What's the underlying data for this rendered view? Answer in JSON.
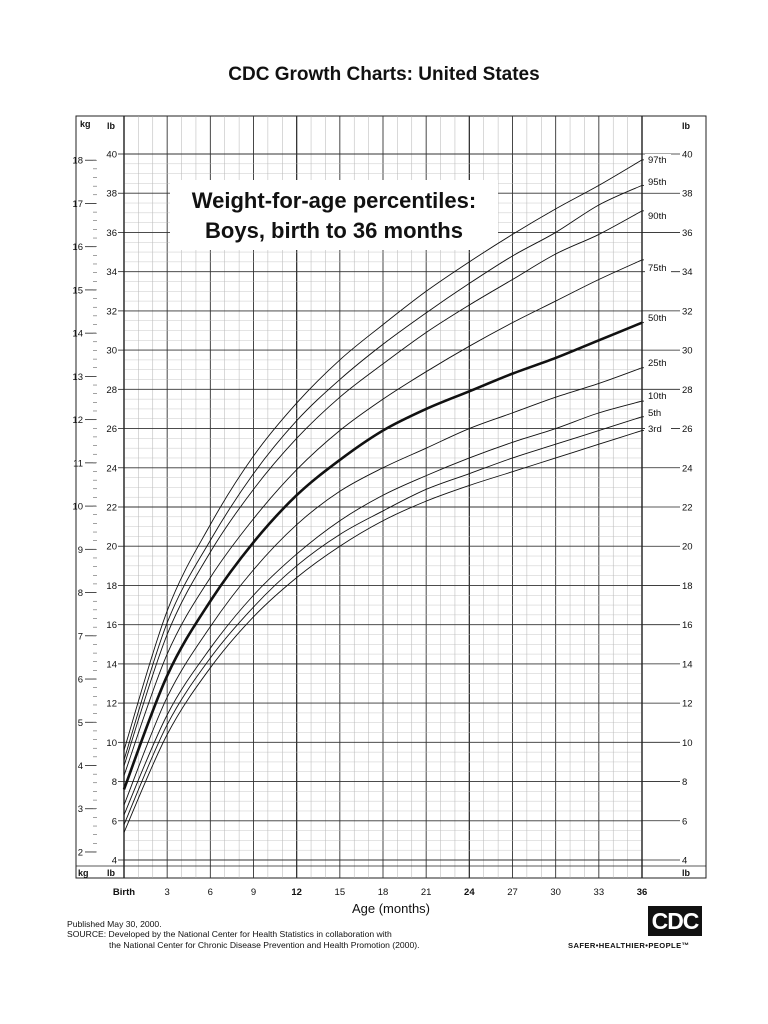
{
  "header": {
    "title": "CDC Growth Charts: United States"
  },
  "footer": {
    "published": "Published May 30, 2000.",
    "source_line1": "SOURCE: Developed by the National Center for Health Statistics in collaboration with",
    "source_line2": "the National Center for Chronic Disease Prevention and Health Promotion (2000)."
  },
  "logo": {
    "text": "CDC",
    "tagline": "SAFER•HEALTHIER•PEOPLE™"
  },
  "chart_data": {
    "type": "line",
    "title_line1": "Weight-for-age percentiles:",
    "title_line2": "Boys, birth to 36 months",
    "xlabel": "Age (months)",
    "xlim": [
      0,
      36
    ],
    "x_ticks": [
      {
        "value": 0,
        "label": "Birth",
        "bold": true
      },
      {
        "value": 3,
        "label": "3",
        "bold": false
      },
      {
        "value": 6,
        "label": "6",
        "bold": false
      },
      {
        "value": 9,
        "label": "9",
        "bold": false
      },
      {
        "value": 12,
        "label": "12",
        "bold": true
      },
      {
        "value": 15,
        "label": "15",
        "bold": false
      },
      {
        "value": 18,
        "label": "18",
        "bold": false
      },
      {
        "value": 21,
        "label": "21",
        "bold": false
      },
      {
        "value": 24,
        "label": "24",
        "bold": true
      },
      {
        "value": 27,
        "label": "27",
        "bold": false
      },
      {
        "value": 30,
        "label": "30",
        "bold": false
      },
      {
        "value": 33,
        "label": "33",
        "bold": false
      },
      {
        "value": 36,
        "label": "36",
        "bold": true
      }
    ],
    "lb_axis": {
      "unit": "lb",
      "range": [
        4,
        40
      ],
      "ticks": [
        4,
        6,
        8,
        10,
        12,
        14,
        16,
        18,
        20,
        22,
        24,
        26,
        28,
        30,
        32,
        34,
        36,
        38,
        40
      ]
    },
    "kg_axis": {
      "unit": "kg",
      "ticks": [
        2,
        3,
        4,
        5,
        6,
        7,
        8,
        9,
        10,
        11,
        12,
        13,
        14,
        15,
        16,
        17,
        18
      ]
    },
    "grid": true,
    "x": [
      0,
      3,
      6,
      9,
      12,
      15,
      18,
      21,
      24,
      27,
      30,
      33,
      36
    ],
    "series": [
      {
        "name": "97th",
        "bold": false,
        "values": [
          9.6,
          16.7,
          21.1,
          24.6,
          27.3,
          29.5,
          31.3,
          33.0,
          34.5,
          35.9,
          37.2,
          38.4,
          39.7
        ]
      },
      {
        "name": "95th",
        "bold": false,
        "values": [
          9.1,
          16.1,
          20.3,
          23.7,
          26.4,
          28.5,
          30.3,
          31.9,
          33.4,
          34.8,
          36.0,
          37.4,
          38.4
        ]
      },
      {
        "name": "90th",
        "bold": false,
        "values": [
          8.8,
          15.5,
          19.7,
          22.9,
          25.5,
          27.6,
          29.3,
          30.9,
          32.3,
          33.6,
          34.9,
          35.9,
          37.1
        ]
      },
      {
        "name": "75th",
        "bold": false,
        "values": [
          8.3,
          14.5,
          18.4,
          21.4,
          23.9,
          25.9,
          27.5,
          28.9,
          30.2,
          31.4,
          32.5,
          33.6,
          34.6
        ]
      },
      {
        "name": "50th",
        "bold": true,
        "values": [
          7.6,
          13.4,
          17.2,
          20.2,
          22.6,
          24.4,
          25.9,
          27.0,
          27.9,
          28.8,
          29.6,
          30.5,
          31.4
        ]
      },
      {
        "name": "25th",
        "bold": false,
        "values": [
          6.8,
          12.3,
          15.9,
          18.8,
          21.1,
          22.8,
          24.0,
          25.0,
          26.0,
          26.8,
          27.6,
          28.3,
          29.1
        ]
      },
      {
        "name": "10th",
        "bold": false,
        "values": [
          6.3,
          11.4,
          14.8,
          17.5,
          19.6,
          21.3,
          22.6,
          23.6,
          24.5,
          25.3,
          26.0,
          26.8,
          27.4
        ]
      },
      {
        "name": "5th",
        "bold": false,
        "values": [
          5.8,
          10.9,
          14.3,
          16.9,
          19.0,
          20.6,
          21.8,
          22.9,
          23.7,
          24.5,
          25.2,
          25.9,
          26.6
        ]
      },
      {
        "name": "3rd",
        "bold": false,
        "values": [
          5.4,
          10.4,
          13.8,
          16.4,
          18.4,
          20.0,
          21.3,
          22.3,
          23.1,
          23.8,
          24.5,
          25.2,
          25.9
        ]
      }
    ]
  }
}
